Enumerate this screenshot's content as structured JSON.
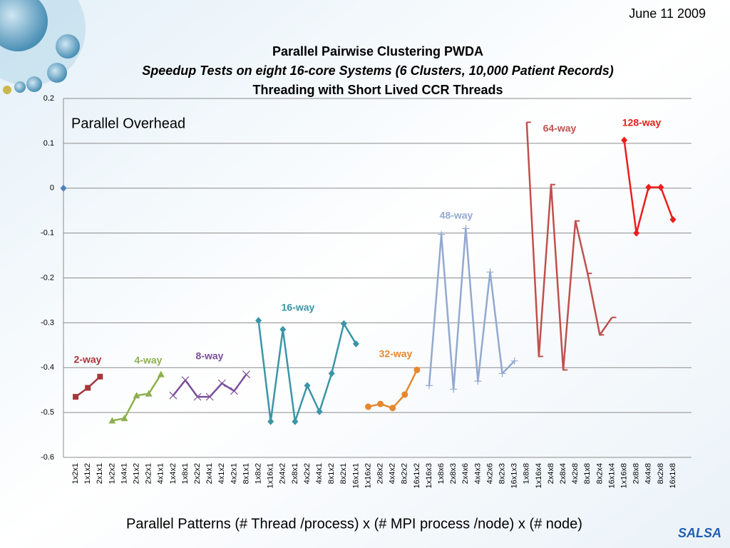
{
  "date": "June 11 2009",
  "logo": "SALSA",
  "chart_data": {
    "type": "line",
    "title": [
      "Parallel Pairwise Clustering PWDA",
      "Speedup Tests on eight 16-core Systems (6 Clusters, 10,000 Patient Records)",
      "Threading with Short Lived CCR Threads"
    ],
    "annotation": "Parallel Overhead",
    "xlabel": "Parallel  Patterns (# Thread /process) x (# MPI process /node) x (# node)",
    "categories": [
      null,
      "1x2x1",
      "1x1x2",
      "2x1x1",
      "1x2x2",
      "1x4x1",
      "2x1x2",
      "2x2x1",
      "4x1x1",
      "1x4x2",
      "1x8x1",
      "2x2x2",
      "2x4x1",
      "4x1x2",
      "4x2x1",
      "8x1x1",
      "1x8x2",
      "1x16x1",
      "2x4x2",
      "2x8x1",
      "4x2x2",
      "4x4x1",
      "8x1x2",
      "8x2x1",
      "16x1x1",
      "1x16x2",
      "2x8x2",
      "4x4x2",
      "8x2x2",
      "16x1x2",
      "1x16x3",
      "1x8x6",
      "2x8x3",
      "2x4x6",
      "4x4x3",
      "4x2x6",
      "8x2x3",
      "16x1x3",
      "1x8x8",
      "1x16x4",
      "2x4x8",
      "2x8x4",
      "4x2x8",
      "8x1x8",
      "8x2x4",
      "16x1x4",
      "1x16x8",
      "2x8x8",
      "4x4x8",
      "8x2x8",
      "16x1x8"
    ],
    "ylim": [
      -0.6,
      0.2
    ],
    "yticks": [
      0.2,
      0.1,
      0,
      -0.1,
      -0.2,
      -0.3,
      -0.4,
      -0.5,
      -0.6
    ],
    "grid": true,
    "series": [
      {
        "color": "#4f81bd",
        "marker": "diamond",
        "values": [
          0,
          null,
          null,
          null,
          null,
          null,
          null,
          null,
          null,
          null,
          null,
          null,
          null,
          null,
          null,
          null,
          null,
          null,
          null,
          null,
          null,
          null,
          null,
          null,
          null,
          null,
          null,
          null,
          null,
          null,
          null,
          null,
          null,
          null,
          null,
          null,
          null,
          null,
          null,
          null,
          null,
          null,
          null,
          null,
          null,
          null,
          null,
          null,
          null,
          null,
          null
        ]
      },
      {
        "name": "2-way",
        "color": "#a5373b",
        "marker": "square",
        "values": [
          null,
          -0.465,
          -0.445,
          -0.42,
          null,
          null,
          null,
          null,
          null,
          null,
          null,
          null,
          null,
          null,
          null,
          null,
          null,
          null,
          null,
          null,
          null,
          null,
          null,
          null,
          null,
          null,
          null,
          null,
          null,
          null,
          null,
          null,
          null,
          null,
          null,
          null,
          null,
          null,
          null,
          null,
          null,
          null,
          null,
          null,
          null,
          null,
          null,
          null,
          null,
          null,
          null
        ]
      },
      {
        "name": "4-way",
        "color": "#8db04f",
        "marker": "triangle",
        "values": [
          null,
          null,
          null,
          null,
          -0.518,
          -0.513,
          -0.462,
          -0.458,
          -0.415,
          null,
          null,
          null,
          null,
          null,
          null,
          null,
          null,
          null,
          null,
          null,
          null,
          null,
          null,
          null,
          null,
          null,
          null,
          null,
          null,
          null,
          null,
          null,
          null,
          null,
          null,
          null,
          null,
          null,
          null,
          null,
          null,
          null,
          null,
          null,
          null,
          null,
          null,
          null,
          null,
          null,
          null
        ]
      },
      {
        "name": "8-way",
        "color": "#7b4f9c",
        "marker": "x",
        "values": [
          null,
          null,
          null,
          null,
          null,
          null,
          null,
          null,
          null,
          -0.462,
          -0.428,
          -0.465,
          -0.465,
          -0.435,
          -0.452,
          -0.415,
          null,
          null,
          null,
          null,
          null,
          null,
          null,
          null,
          null,
          null,
          null,
          null,
          null,
          null,
          null,
          null,
          null,
          null,
          null,
          null,
          null,
          null,
          null,
          null,
          null,
          null,
          null,
          null,
          null,
          null,
          null,
          null,
          null,
          null,
          null
        ]
      },
      {
        "name": "16-way",
        "color": "#3a95a8",
        "marker": "diamond",
        "values": [
          null,
          null,
          null,
          null,
          null,
          null,
          null,
          null,
          null,
          null,
          null,
          null,
          null,
          null,
          null,
          null,
          -0.295,
          -0.52,
          -0.315,
          -0.52,
          -0.44,
          -0.498,
          -0.413,
          -0.302,
          -0.347,
          null,
          null,
          null,
          null,
          null,
          null,
          null,
          null,
          null,
          null,
          null,
          null,
          null,
          null,
          null,
          null,
          null,
          null,
          null,
          null,
          null,
          null,
          null,
          null,
          null,
          null
        ]
      },
      {
        "name": "32-way",
        "color": "#e7872e",
        "marker": "circle",
        "values": [
          null,
          null,
          null,
          null,
          null,
          null,
          null,
          null,
          null,
          null,
          null,
          null,
          null,
          null,
          null,
          null,
          null,
          null,
          null,
          null,
          null,
          null,
          null,
          null,
          null,
          -0.487,
          -0.481,
          -0.49,
          -0.46,
          -0.405,
          null,
          null,
          null,
          null,
          null,
          null,
          null,
          null,
          null,
          null,
          null,
          null,
          null,
          null,
          null,
          null,
          null,
          null,
          null,
          null,
          null
        ]
      },
      {
        "name": "48-way",
        "color": "#93a9d0",
        "marker": "plus",
        "values": [
          null,
          null,
          null,
          null,
          null,
          null,
          null,
          null,
          null,
          null,
          null,
          null,
          null,
          null,
          null,
          null,
          null,
          null,
          null,
          null,
          null,
          null,
          null,
          null,
          null,
          null,
          null,
          null,
          null,
          null,
          -0.44,
          -0.103,
          -0.448,
          -0.09,
          -0.43,
          -0.187,
          -0.413,
          -0.385,
          null,
          null,
          null,
          null,
          null,
          null,
          null,
          null,
          null,
          null,
          null,
          null,
          null
        ]
      },
      {
        "name": "64-way",
        "color": "#c0504d",
        "marker": "dash",
        "values": [
          null,
          null,
          null,
          null,
          null,
          null,
          null,
          null,
          null,
          null,
          null,
          null,
          null,
          null,
          null,
          null,
          null,
          null,
          null,
          null,
          null,
          null,
          null,
          null,
          null,
          null,
          null,
          null,
          null,
          null,
          null,
          null,
          null,
          null,
          null,
          null,
          null,
          null,
          0.147,
          -0.375,
          0.008,
          -0.405,
          -0.073,
          -0.19,
          -0.327,
          -0.288,
          null,
          null,
          null,
          null,
          null
        ]
      },
      {
        "name": "128-way",
        "color": "#ee1c1c",
        "marker": "diamond",
        "values": [
          null,
          null,
          null,
          null,
          null,
          null,
          null,
          null,
          null,
          null,
          null,
          null,
          null,
          null,
          null,
          null,
          null,
          null,
          null,
          null,
          null,
          null,
          null,
          null,
          null,
          null,
          null,
          null,
          null,
          null,
          null,
          null,
          null,
          null,
          null,
          null,
          null,
          null,
          null,
          null,
          null,
          null,
          null,
          null,
          null,
          null,
          0.107,
          -0.1,
          0.002,
          0.002,
          -0.07
        ]
      }
    ]
  }
}
